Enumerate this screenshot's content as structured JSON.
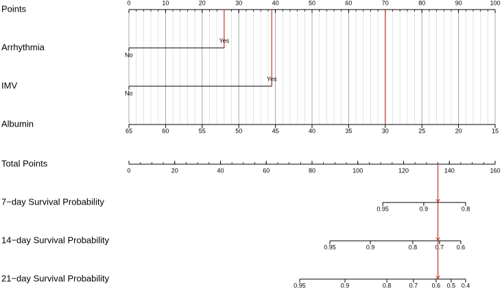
{
  "chart_data": {
    "type": "nomogram",
    "selection_color": "#c0392b",
    "axis_color": "#000000",
    "grid": true,
    "rows": [
      {
        "name": "Points",
        "kind": "points",
        "lim": [
          0,
          100
        ],
        "ticks": [
          0,
          10,
          20,
          30,
          40,
          50,
          60,
          70,
          80,
          90,
          100
        ],
        "minor_ticks": [
          0,
          2,
          4,
          6,
          8,
          10,
          12,
          14,
          16,
          18,
          20,
          22,
          24,
          26,
          28,
          30,
          32,
          34,
          36,
          38,
          40,
          42,
          44,
          46,
          48,
          50,
          52,
          54,
          56,
          58,
          60,
          62,
          64,
          66,
          68,
          70,
          72,
          74,
          76,
          78,
          80,
          82,
          84,
          86,
          88,
          90,
          92,
          94,
          96,
          98,
          100
        ]
      },
      {
        "name": "Arrhythmia",
        "kind": "categorical",
        "levels": [
          "No",
          "Yes"
        ],
        "points": [
          0,
          26
        ],
        "selected": 26
      },
      {
        "name": "IMV",
        "kind": "categorical",
        "levels": [
          "No",
          "Yes"
        ],
        "points": [
          0,
          39
        ],
        "selected": 39
      },
      {
        "name": "Albumin",
        "kind": "continuous",
        "lim": [
          65,
          15
        ],
        "ticks": [
          65,
          60,
          55,
          50,
          45,
          40,
          35,
          30,
          25,
          20,
          15
        ],
        "selected": 30
      },
      {
        "name": "Total Points",
        "kind": "total",
        "lim": [
          0,
          160
        ],
        "ticks": [
          0,
          20,
          40,
          60,
          80,
          100,
          120,
          140,
          160
        ],
        "minor_ticks": [
          0,
          5,
          10,
          15,
          20,
          25,
          30,
          35,
          40,
          45,
          50,
          55,
          60,
          65,
          70,
          75,
          80,
          85,
          90,
          95,
          100,
          105,
          110,
          115,
          120,
          125,
          130,
          135,
          140,
          145,
          150,
          155,
          160
        ],
        "selected": 135
      },
      {
        "name": "7−day Survival Probability",
        "kind": "probability",
        "ticks": [
          0.95,
          0.9,
          0.8
        ],
        "positions": [
          110.9,
          128.8,
          147.1
        ]
      },
      {
        "name": "14−day Survival Probability",
        "kind": "probability",
        "ticks": [
          0.95,
          0.9,
          0.8,
          0.7,
          0.6
        ],
        "positions": [
          87.8,
          105.5,
          124.0,
          135.7,
          145.0
        ]
      },
      {
        "name": "21−day Survival Probability",
        "kind": "probability",
        "ticks": [
          0.95,
          0.9,
          0.8,
          0.7,
          0.6,
          0.5,
          0.4
        ],
        "positions": [
          74.6,
          94.4,
          112.7,
          124.3,
          134.2,
          140.8,
          147.1
        ]
      }
    ]
  }
}
